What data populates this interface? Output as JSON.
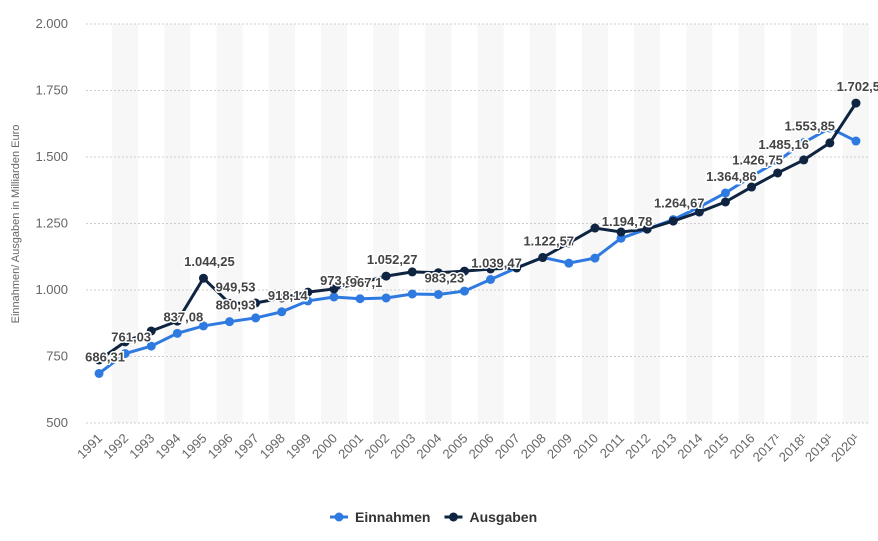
{
  "chart_data": {
    "type": "line",
    "y_label": "Einnahmen/ Ausgaben in Milliarden Euro",
    "categories": [
      "1991",
      "1992",
      "1993",
      "1994",
      "1995",
      "1996",
      "1997",
      "1998",
      "1999",
      "2000",
      "2001",
      "2002",
      "2003",
      "2004",
      "2005",
      "2006",
      "2007",
      "2008",
      "2009",
      "2010",
      "2011",
      "2012",
      "2013",
      "2014",
      "2015",
      "2016",
      "2017¹",
      "2018¹",
      "2019¹",
      "2020¹"
    ],
    "series": [
      {
        "name": "Einnahmen",
        "color": "#2e7ae0",
        "values": [
          686.31,
          761.03,
          789,
          837.08,
          865,
          880.93,
          895,
          918.14,
          959,
          973.83,
          967.1,
          970,
          985,
          983.23,
          996,
          1039.47,
          1083,
          1122.57,
          1101,
          1120,
          1194.78,
          1229,
          1264.67,
          1312,
          1364.86,
          1426.75,
          1485.16,
          1553.85,
          1609,
          1560
        ],
        "value_labels": [
          "686,31",
          "761,03",
          null,
          "837,08",
          null,
          "880,93",
          null,
          "918,14",
          null,
          "973,83",
          "967,1",
          null,
          null,
          "983,23",
          null,
          "1.039,47",
          null,
          "1.122,57",
          null,
          null,
          "1.194,78",
          null,
          "1.264,67",
          null,
          "1.364,86",
          "1.426,75",
          "1.485,16",
          "1.553,85",
          null,
          null
        ]
      },
      {
        "name": "Ausgaben",
        "color": "#0f2440",
        "values": [
          737,
          805,
          846,
          883,
          1044.25,
          949.53,
          951,
          970,
          992,
          1004,
          1026,
          1052.27,
          1068,
          1065,
          1071,
          1079,
          1083,
          1122,
          1177,
          1233,
          1218,
          1229,
          1259,
          1293,
          1331,
          1387,
          1440,
          1489,
          1553,
          1702.57
        ],
        "value_labels": [
          null,
          null,
          null,
          null,
          "1.044,25",
          "949,53",
          null,
          null,
          null,
          null,
          null,
          "1.052,27",
          null,
          null,
          null,
          null,
          null,
          null,
          null,
          null,
          null,
          null,
          null,
          null,
          null,
          null,
          null,
          null,
          null,
          "1.702,57"
        ]
      }
    ],
    "ylim": [
      500,
      2000
    ],
    "yticks": [
      500,
      750,
      {
        "value": 1000,
        "label": "1.000"
      },
      {
        "value": 1250,
        "label": "1.250"
      },
      {
        "value": 1500,
        "label": "1.500"
      },
      {
        "value": 1750,
        "label": "1.750"
      },
      {
        "value": 2000,
        "label": "2.000"
      }
    ],
    "grid": true,
    "legend": "bottom"
  }
}
